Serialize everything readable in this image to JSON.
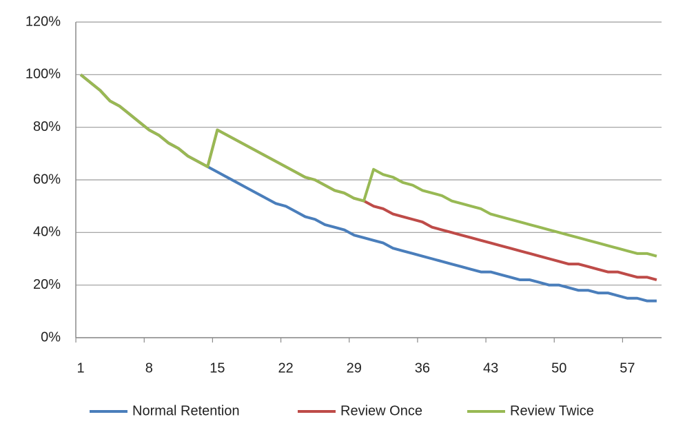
{
  "chart_data": {
    "type": "line",
    "x": [
      1,
      2,
      3,
      4,
      5,
      6,
      7,
      8,
      9,
      10,
      11,
      12,
      13,
      14,
      15,
      16,
      17,
      18,
      19,
      20,
      21,
      22,
      23,
      24,
      25,
      26,
      27,
      28,
      29,
      30,
      31,
      32,
      33,
      34,
      35,
      36,
      37,
      38,
      39,
      40,
      41,
      42,
      43,
      44,
      45,
      46,
      47,
      48,
      49,
      50,
      51,
      52,
      53,
      54,
      55,
      56,
      57,
      58,
      59,
      60
    ],
    "xlim": [
      0.5,
      60.5
    ],
    "xticks": [
      1,
      8,
      15,
      22,
      29,
      36,
      43,
      50,
      57
    ],
    "ylim": [
      0,
      120
    ],
    "yticks": [
      {
        "value": 0,
        "label": "0%"
      },
      {
        "value": 20,
        "label": "20%"
      },
      {
        "value": 40,
        "label": "40%"
      },
      {
        "value": 60,
        "label": "60%"
      },
      {
        "value": 80,
        "label": "80%"
      },
      {
        "value": 100,
        "label": "100%"
      },
      {
        "value": 120,
        "label": "120%"
      }
    ],
    "grid": true,
    "legend": "bottom",
    "series": [
      {
        "name": "Normal Retention",
        "color": "#4a7ebb",
        "values": [
          100,
          97,
          94,
          90,
          88,
          85,
          82,
          79,
          77,
          74,
          72,
          69,
          67,
          65,
          63,
          61,
          59,
          57,
          55,
          53,
          51,
          50,
          48,
          46,
          45,
          43,
          42,
          41,
          39,
          38,
          37,
          36,
          34,
          33,
          32,
          31,
          30,
          29,
          28,
          27,
          26,
          25,
          25,
          24,
          23,
          22,
          22,
          21,
          20,
          20,
          19,
          18,
          18,
          17,
          17,
          16,
          15,
          15,
          14,
          14
        ]
      },
      {
        "name": "Review Once",
        "color": "#be4b48",
        "values": [
          100,
          97,
          94,
          90,
          88,
          85,
          82,
          79,
          77,
          74,
          72,
          69,
          67,
          65,
          79,
          77,
          75,
          73,
          71,
          69,
          67,
          65,
          63,
          61,
          60,
          58,
          56,
          55,
          53,
          52,
          50,
          49,
          47,
          46,
          45,
          44,
          42,
          41,
          40,
          39,
          38,
          37,
          36,
          35,
          34,
          33,
          32,
          31,
          30,
          29,
          28,
          28,
          27,
          26,
          25,
          25,
          24,
          23,
          23,
          22
        ]
      },
      {
        "name": "Review Twice",
        "color": "#98b954",
        "values": [
          100,
          97,
          94,
          90,
          88,
          85,
          82,
          79,
          77,
          74,
          72,
          69,
          67,
          65,
          79,
          77,
          75,
          73,
          71,
          69,
          67,
          65,
          63,
          61,
          60,
          58,
          56,
          55,
          53,
          52,
          64,
          62,
          61,
          59,
          58,
          56,
          55,
          54,
          52,
          51,
          50,
          49,
          47,
          46,
          45,
          44,
          43,
          42,
          41,
          40,
          39,
          38,
          37,
          36,
          35,
          34,
          33,
          32,
          32,
          31
        ]
      }
    ]
  }
}
